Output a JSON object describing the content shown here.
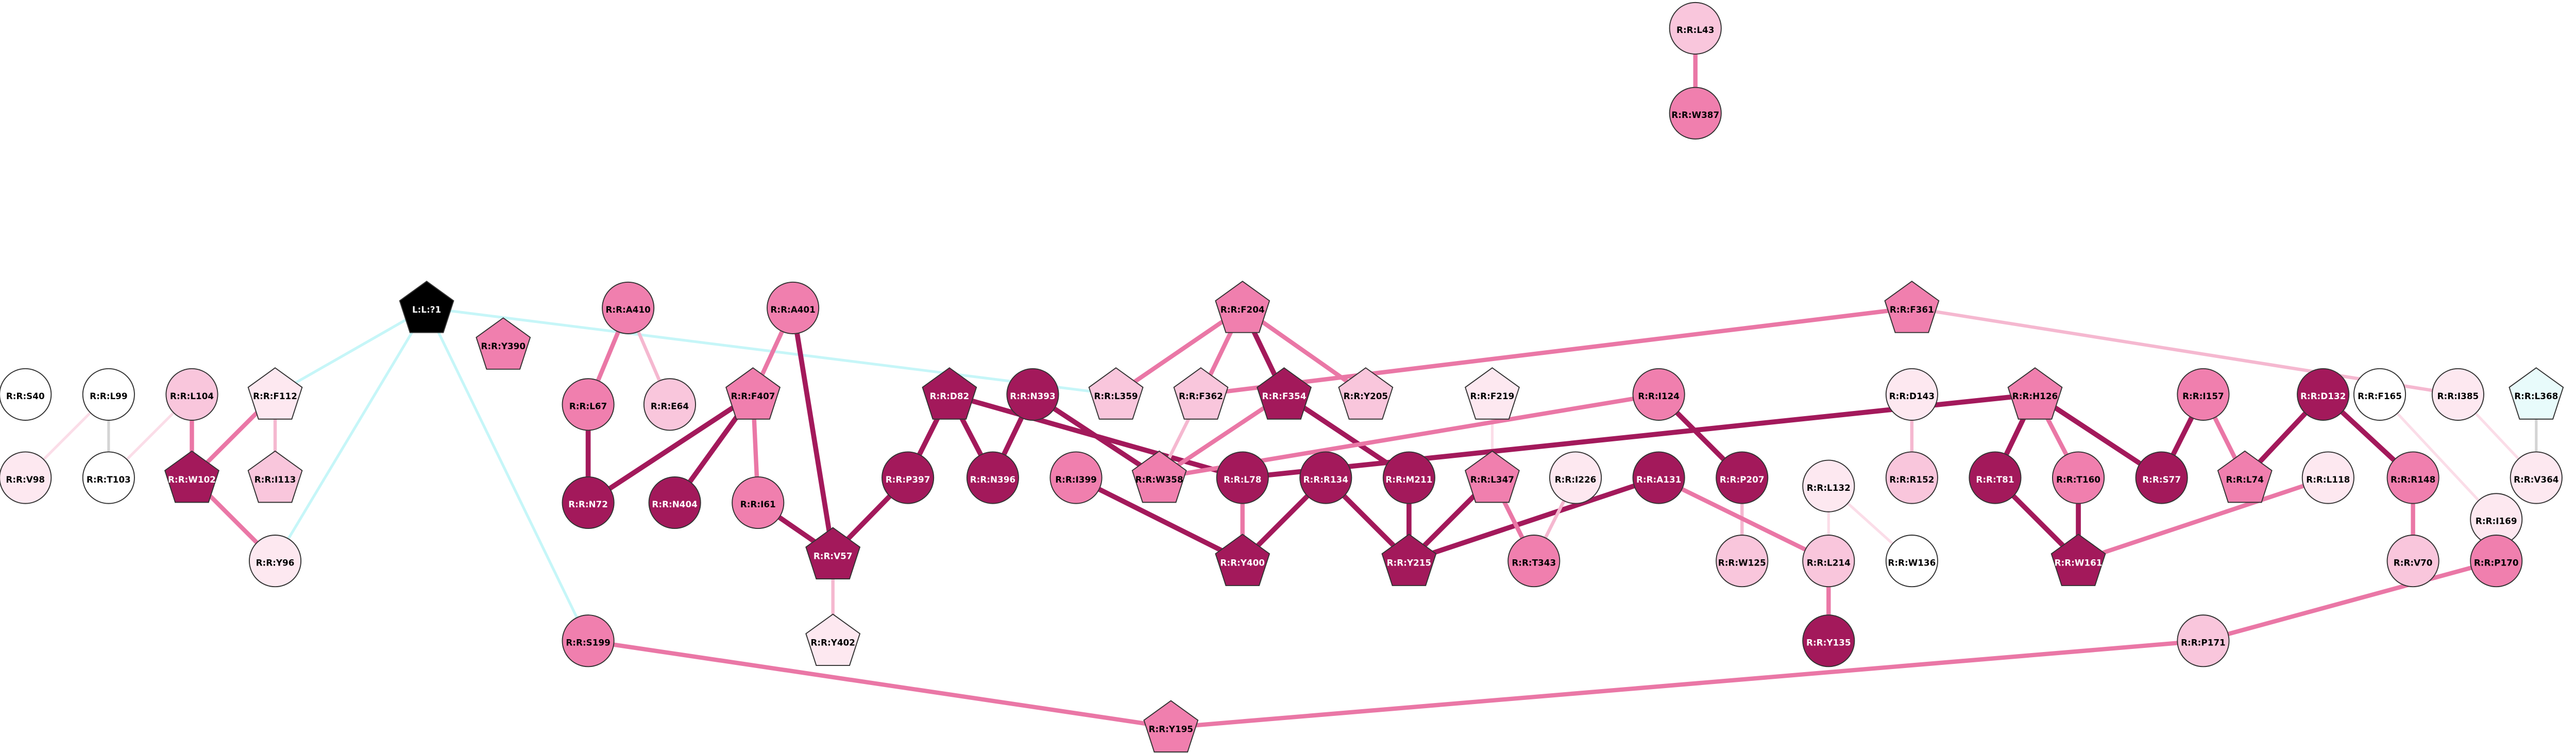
{
  "nodes": [
    "R:R:L43",
    "R:R:W387",
    "L:L:?1",
    "R:R:Y390",
    "R:R:A410",
    "R:R:L67",
    "R:R:E64",
    "R:R:N72",
    "R:R:F407",
    "R:R:N404",
    "R:R:I61",
    "R:R:A401",
    "R:R:V57",
    "R:R:Y402",
    "R:R:S199",
    "R:R:Y195",
    "R:R:D82",
    "R:R:N393",
    "R:R:P397",
    "R:R:N396",
    "R:R:I399",
    "R:R:L359",
    "R:R:F204",
    "R:R:F362",
    "R:R:F354",
    "R:R:Y205",
    "R:R:W358",
    "R:R:L78",
    "R:R:R134",
    "R:R:M211",
    "R:R:Y400",
    "R:R:Y215",
    "R:R:F219",
    "R:R:L347",
    "R:R:I226",
    "R:R:T343",
    "R:R:I124",
    "R:R:A131",
    "R:R:P207",
    "R:R:W125",
    "R:R:L132",
    "R:R:L214",
    "R:R:Y135",
    "R:R:D143",
    "R:R:R152",
    "R:R:W136",
    "R:R:F361",
    "R:R:H126",
    "R:R:T81",
    "R:R:T160",
    "R:R:W161",
    "R:R:I157",
    "R:R:S77",
    "R:R:L74",
    "R:R:D132",
    "R:R:F165",
    "R:R:I385",
    "R:R:L368",
    "R:R:V364",
    "R:R:L118",
    "R:R:R148",
    "R:R:I169",
    "R:R:V70",
    "R:R:P170",
    "R:R:P171",
    "R:R:S40",
    "R:R:L99",
    "R:R:L104",
    "R:R:F112",
    "R:R:V98",
    "R:R:T103",
    "R:R:W102",
    "R:R:I113",
    "R:R:Y96"
  ]
}
